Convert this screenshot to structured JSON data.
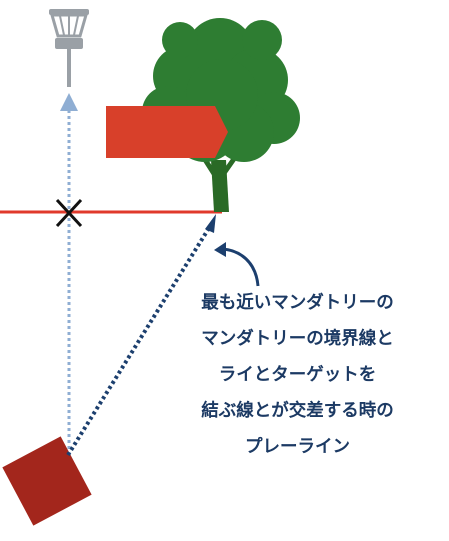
{
  "caption": {
    "lines": [
      "最も近いマンダトリーの",
      "マンダトリーの境界線と",
      "ライとターゲットを",
      "結ぶ線とが交差する時の",
      "プレーライン"
    ]
  },
  "colors": {
    "tree_foliage": "#2e7d32",
    "tree_trunk": "#2a6a26",
    "mandatory_flag": "#d8402a",
    "boundary_line": "#e0392b",
    "tee_pad": "#a3261c",
    "play_line": "#1c3f6e",
    "direct_line": "#8faed3",
    "basket": "#9aa0a6",
    "caption_text": "#1c3a64"
  }
}
